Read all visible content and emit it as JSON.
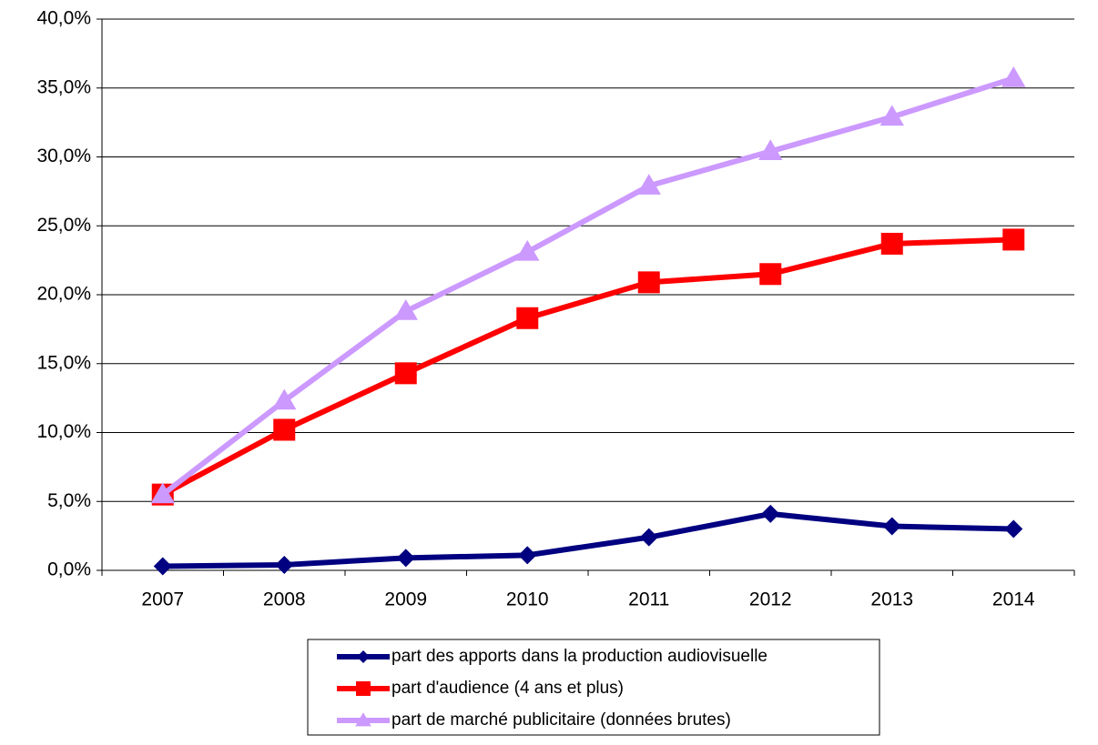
{
  "chart_data": {
    "type": "line",
    "categories": [
      "2007",
      "2008",
      "2009",
      "2010",
      "2011",
      "2012",
      "2013",
      "2014"
    ],
    "series": [
      {
        "name": "part des apports dans la production audiovisuelle",
        "color": "#000080",
        "marker": "diamond",
        "values": [
          0.3,
          0.4,
          0.9,
          1.1,
          2.4,
          4.1,
          3.2,
          3.0
        ]
      },
      {
        "name": "part d'audience (4 ans et plus)",
        "color": "#ff0000",
        "marker": "square",
        "values": [
          5.5,
          10.2,
          14.3,
          18.3,
          20.9,
          21.5,
          23.7,
          24.0
        ]
      },
      {
        "name": "part de marché publicitaire (données brutes)",
        "color": "#cc99ff",
        "marker": "triangle",
        "values": [
          5.5,
          12.3,
          18.8,
          23.1,
          27.9,
          30.4,
          32.9,
          35.7
        ]
      }
    ],
    "ylim": [
      0,
      40
    ],
    "yticks": [
      {
        "value": 0,
        "label": "0,0%"
      },
      {
        "value": 5,
        "label": "5,0%"
      },
      {
        "value": 10,
        "label": "10,0%"
      },
      {
        "value": 15,
        "label": "15,0%"
      },
      {
        "value": 20,
        "label": "20,0%"
      },
      {
        "value": 25,
        "label": "25,0%"
      },
      {
        "value": 30,
        "label": "30,0%"
      },
      {
        "value": 35,
        "label": "35,0%"
      },
      {
        "value": 40,
        "label": "40,0%"
      }
    ],
    "grid": true,
    "legend": "bottom"
  }
}
